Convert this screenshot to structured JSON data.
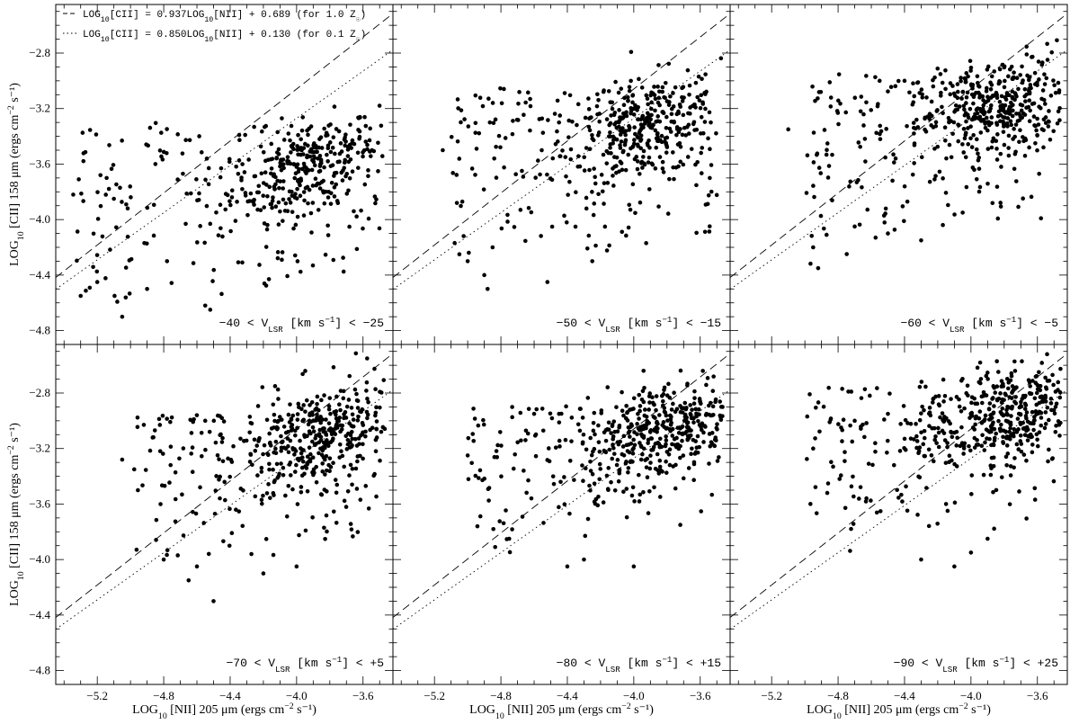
{
  "chart_data": {
    "type": "scatter",
    "layout": "2x3 panel grid, shared axes",
    "xlabel": "LOG10 [NII] 205 μm (ergs cm⁻² s⁻¹)",
    "xlabel_parts": {
      "pre": "LOG",
      "sub": "10",
      "post": " [NII] 205 μm (ergs cm",
      "sup": "−2",
      "end": " s⁻¹)"
    },
    "ylabel": "LOG10 [CII] 158 μm (ergs cm⁻² s⁻¹)",
    "ylabel_parts": {
      "pre": "LOG",
      "sub": "10",
      "post": " [CII] 158 μm (ergs cm",
      "sup": "−2",
      "end": " s⁻¹)"
    },
    "xlim": [
      -5.45,
      -3.42
    ],
    "ylim": [
      -4.9,
      -2.45
    ],
    "x_ticks": [
      "−5.2",
      "−4.8",
      "−4.4",
      "−4.0",
      "−3.6"
    ],
    "x_tick_values": [
      -5.2,
      -4.8,
      -4.4,
      -4.0,
      -3.6
    ],
    "y_ticks": [
      "−2.8",
      "−3.2",
      "−3.6",
      "−4.0",
      "−4.4",
      "−4.8"
    ],
    "y_tick_values": [
      -2.8,
      -3.2,
      -3.6,
      -4.0,
      -4.4,
      -4.8
    ],
    "grid": false,
    "legend_position": "top-left of first panel",
    "legend": [
      {
        "style": "dashed",
        "text": "LOG10[CII] = 0.937LOG10[NII] + 0.689 (for 1.0 Z☉)"
      },
      {
        "style": "dotted",
        "text": "LOG10[CII] = 0.850LOG10[NII] + 0.130 (for 0.1 Z☉)"
      }
    ],
    "reference_lines": [
      {
        "name": "1.0 Z☉",
        "style": "dashed",
        "slope": 0.937,
        "intercept": 0.689
      },
      {
        "name": "0.1 Z☉",
        "style": "dotted",
        "slope": 0.85,
        "intercept": 0.13
      }
    ],
    "panels": [
      {
        "label": "−40 < VLSR [km s⁻¹] < −25",
        "label_parts": {
          "pre": "−40 < V",
          "sub": "LSR",
          "post": " [km s",
          "sup": "−1",
          "end": "] < −25"
        },
        "vmin": -40,
        "vmax": -25,
        "cluster": {
          "center": [
            -3.95,
            -3.62
          ],
          "count": 260,
          "spread": [
            0.22,
            0.16
          ],
          "tilt": 0.6
        },
        "halo": {
          "xrange": [
            -5.35,
            -3.5
          ],
          "yrange": [
            -4.72,
            -3.3
          ],
          "count": 210
        },
        "points": [
          [
            -4.55,
            -4.62
          ],
          [
            -4.52,
            -4.65
          ],
          [
            -5.05,
            -4.7
          ],
          [
            -4.9,
            -4.5
          ],
          [
            -5.2,
            -4.45
          ],
          [
            -5.3,
            -4.55
          ],
          [
            -4.78,
            -4.3
          ],
          [
            -4.85,
            -3.6
          ],
          [
            -5.1,
            -3.85
          ]
        ]
      },
      {
        "label": "−50 < VLSR [km s⁻¹] < −15",
        "label_parts": {
          "pre": "−50 < V",
          "sub": "LSR",
          "post": " [km s",
          "sup": "−1",
          "end": "] < −15"
        },
        "vmin": -50,
        "vmax": -15,
        "cluster": {
          "center": [
            -3.92,
            -3.35
          ],
          "count": 300,
          "spread": [
            0.22,
            0.18
          ],
          "tilt": 0.55
        },
        "halo": {
          "xrange": [
            -5.1,
            -3.5
          ],
          "yrange": [
            -4.45,
            -3.05
          ],
          "count": 200
        },
        "points": [
          [
            -5.05,
            -4.25
          ],
          [
            -5.0,
            -4.3
          ],
          [
            -4.88,
            -4.5
          ],
          [
            -4.9,
            -4.4
          ],
          [
            -4.85,
            -4.2
          ],
          [
            -4.52,
            -4.45
          ],
          [
            -4.25,
            -4.3
          ],
          [
            -4.45,
            -3.3
          ],
          [
            -5.15,
            -3.5
          ]
        ]
      },
      {
        "label": "−60 < VLSR [km s⁻¹] <  −5",
        "label_parts": {
          "pre": "−60 < V",
          "sub": "LSR",
          "post": " [km s",
          "sup": "−1",
          "end": "] <  −5"
        },
        "vmin": -60,
        "vmax": -5,
        "cluster": {
          "center": [
            -3.85,
            -3.2
          ],
          "count": 330,
          "spread": [
            0.22,
            0.18
          ],
          "tilt": 0.55
        },
        "halo": {
          "xrange": [
            -5.0,
            -3.5
          ],
          "yrange": [
            -4.35,
            -2.95
          ],
          "count": 190
        },
        "points": [
          [
            -4.92,
            -4.35
          ],
          [
            -4.95,
            -4.2
          ],
          [
            -4.7,
            -4.05
          ],
          [
            -4.5,
            -4.1
          ],
          [
            -4.3,
            -4.15
          ],
          [
            -4.05,
            -3.95
          ],
          [
            -4.55,
            -3.0
          ],
          [
            -4.4,
            -3.0
          ],
          [
            -5.1,
            -3.35
          ]
        ]
      },
      {
        "label": "−70 < VLSR [km s⁻¹] <  +5",
        "label_parts": {
          "pre": "−70 < V",
          "sub": "LSR",
          "post": " [km s",
          "sup": "−1",
          "end": "] <  +5"
        },
        "vmin": -70,
        "vmax": 5,
        "cluster": {
          "center": [
            -3.85,
            -3.1
          ],
          "count": 340,
          "spread": [
            0.24,
            0.18
          ],
          "tilt": 0.5
        },
        "halo": {
          "xrange": [
            -5.0,
            -3.5
          ],
          "yrange": [
            -4.2,
            -2.95
          ],
          "count": 180
        },
        "points": [
          [
            -4.5,
            -4.3
          ],
          [
            -4.65,
            -4.15
          ],
          [
            -4.6,
            -4.05
          ],
          [
            -4.2,
            -4.1
          ],
          [
            -4.0,
            -4.05
          ],
          [
            -4.8,
            -4.0
          ],
          [
            -5.05,
            -3.28
          ],
          [
            -4.55,
            -3.0
          ],
          [
            -4.45,
            -2.98
          ]
        ]
      },
      {
        "label": "−80 < VLSR [km s⁻¹] < +15",
        "label_parts": {
          "pre": "−80 < V",
          "sub": "LSR",
          "post": " [km s",
          "sup": "−1",
          "end": "] < +15"
        },
        "vmin": -80,
        "vmax": 15,
        "cluster": {
          "center": [
            -3.82,
            -3.05
          ],
          "count": 350,
          "spread": [
            0.24,
            0.18
          ],
          "tilt": 0.5
        },
        "halo": {
          "xrange": [
            -5.0,
            -3.5
          ],
          "yrange": [
            -4.05,
            -2.9
          ],
          "count": 170
        },
        "points": [
          [
            -4.4,
            -4.05
          ],
          [
            -4.3,
            -4.0
          ],
          [
            -4.0,
            -4.05
          ],
          [
            -3.72,
            -3.75
          ],
          [
            -4.75,
            -3.85
          ],
          [
            -5.0,
            -3.25
          ],
          [
            -4.6,
            -2.95
          ],
          [
            -4.45,
            -2.95
          ]
        ]
      },
      {
        "label": "−90 < VLSR [km s⁻¹] < +25",
        "label_parts": {
          "pre": "−90 < V",
          "sub": "LSR",
          "post": " [km s",
          "sup": "−1",
          "end": "] < +25"
        },
        "vmin": -90,
        "vmax": 25,
        "cluster": {
          "center": [
            -3.8,
            -2.95
          ],
          "count": 370,
          "spread": [
            0.24,
            0.18
          ],
          "tilt": 0.5
        },
        "halo": {
          "xrange": [
            -5.0,
            -3.5
          ],
          "yrange": [
            -4.05,
            -2.75
          ],
          "count": 170
        },
        "points": [
          [
            -4.3,
            -4.0
          ],
          [
            -4.1,
            -4.05
          ],
          [
            -4.0,
            -3.95
          ],
          [
            -3.9,
            -3.85
          ],
          [
            -4.15,
            -3.6
          ],
          [
            -4.95,
            -3.2
          ],
          [
            -4.5,
            -2.95
          ],
          [
            -4.7,
            -3.0
          ]
        ]
      }
    ]
  }
}
